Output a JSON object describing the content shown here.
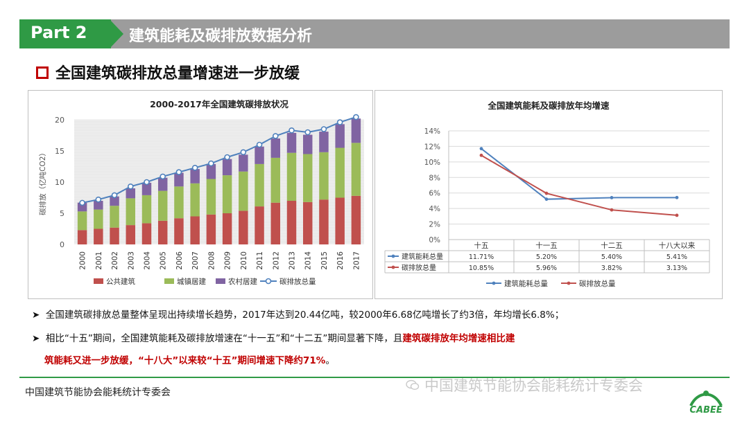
{
  "header": {
    "part_label": "Part 2",
    "title": "建筑能耗及碳排放数据分析"
  },
  "subtitle": "全国建筑碳排放总量增速进一步放缓",
  "bullets": [
    {
      "text": "全国建筑碳排放总量整体呈现出持续增长趋势，2017年达到20.44亿吨，较2000年6.68亿吨增长了约3倍，年均增长6.8%；"
    },
    {
      "text_before": "相比“十五”期间，全国建筑能耗及碳排放增速在“十一五”和“十二五”期间显著下降，且",
      "highlight_1": "建筑碳排放年均增速相比建",
      "highlight_2": "筑能耗又进一步放缓，“十八大”以来较“十五”期间增速下降约71%",
      "text_after": "。"
    }
  ],
  "footer": {
    "org": "中国建筑节能协会能耗统计专委会",
    "watermark": "中国建筑节能协会能耗统计专委会",
    "logo_text": "CABEE"
  },
  "colors": {
    "green": "#2f9a45",
    "red": "#c00000",
    "public": "#c0504d",
    "urban": "#9bbb59",
    "rural": "#8064a2",
    "total": "#4f81bd"
  },
  "chart_data": [
    {
      "type": "bar",
      "stacked": true,
      "title": "2000-2017年全国建筑碳排放状况",
      "xlabel": "",
      "ylabel": "碳排放（亿吨CO2）",
      "ylim": [
        0,
        20
      ],
      "yticks": [
        "0",
        "5",
        "10",
        "15",
        "20"
      ],
      "categories": [
        "2000",
        "2001",
        "2002",
        "2003",
        "2004",
        "2005",
        "2006",
        "2007",
        "2008",
        "2009",
        "2010",
        "2011",
        "2012",
        "2013",
        "2014",
        "2015",
        "2016",
        "2017"
      ],
      "series": [
        {
          "name": "公共建筑",
          "kind": "bar",
          "values": [
            2.3,
            2.5,
            2.7,
            3.1,
            3.4,
            3.8,
            4.2,
            4.5,
            4.8,
            5.0,
            5.4,
            6.1,
            6.7,
            7.0,
            6.8,
            7.2,
            7.5,
            7.8
          ]
        },
        {
          "name": "城镇居建",
          "kind": "bar",
          "values": [
            3.0,
            3.1,
            3.5,
            4.3,
            4.5,
            4.8,
            5.1,
            5.3,
            5.7,
            6.1,
            6.3,
            6.8,
            7.2,
            7.7,
            7.7,
            7.6,
            8.0,
            8.5
          ]
        },
        {
          "name": "农村居建",
          "kind": "bar",
          "values": [
            1.4,
            1.4,
            1.5,
            1.6,
            2.0,
            2.1,
            2.2,
            2.3,
            2.4,
            2.6,
            2.7,
            2.8,
            3.1,
            3.2,
            3.1,
            3.3,
            3.8,
            3.9
          ]
        },
        {
          "name": "碳排放总量",
          "kind": "line",
          "values": [
            6.68,
            7.2,
            7.9,
            9.3,
            10.0,
            10.9,
            11.6,
            12.3,
            13.0,
            14.0,
            14.8,
            16.0,
            17.4,
            18.3,
            18.0,
            18.5,
            19.6,
            20.44
          ]
        }
      ],
      "legend_position": "bottom"
    },
    {
      "type": "line",
      "title": "全国建筑能耗及碳排放年均增速",
      "categories": [
        "十五",
        "十一五",
        "十二五",
        "十八大以来"
      ],
      "ylim": [
        0,
        14
      ],
      "yticks": [
        "0%",
        "2%",
        "4%",
        "6%",
        "8%",
        "10%",
        "12%",
        "14%"
      ],
      "series": [
        {
          "name": "建筑能耗总量",
          "values": [
            11.71,
            5.2,
            5.4,
            5.41
          ],
          "labels": [
            "11.71%",
            "5.20%",
            "5.40%",
            "5.41%"
          ]
        },
        {
          "name": "碳排放总量",
          "values": [
            10.85,
            5.96,
            3.82,
            3.13
          ],
          "labels": [
            "10.85%",
            "5.96%",
            "3.82%",
            "3.13%"
          ]
        }
      ],
      "data_table": true,
      "legend_position": "bottom"
    }
  ]
}
